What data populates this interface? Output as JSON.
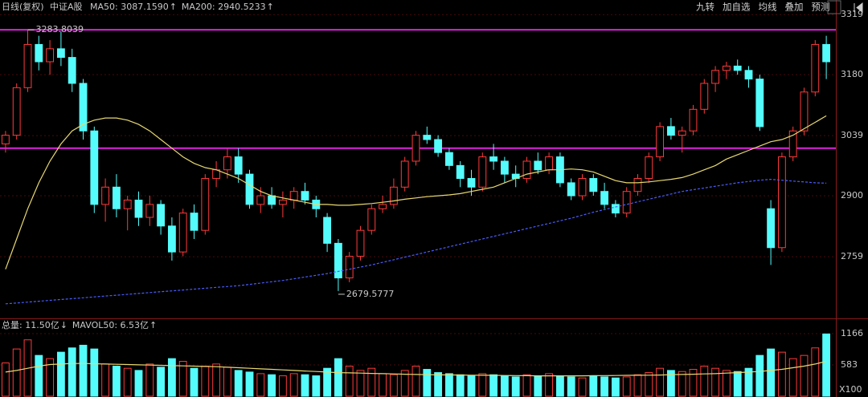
{
  "header": {
    "period": "日线(复权)",
    "name": "中证A股"
  },
  "toolbar": [
    "九转",
    "加自选",
    "均线",
    "叠加",
    "预测"
  ],
  "chart_data": {
    "type": "candlestick",
    "ylim": [
      2620,
      3338
    ],
    "yticks": [
      2759,
      2900,
      3039,
      3180,
      3319
    ],
    "up_color": "#ff3a3a",
    "down_color": "#54fcfc",
    "hlines": [
      3284,
      3010
    ],
    "hline_color": "#e020e0",
    "annotations": [
      {
        "value": 3283.8039,
        "label": "3283.8039"
      },
      {
        "value": 2679.5777,
        "label": "2679.5777"
      }
    ],
    "ohlc": [
      [
        3020,
        3050,
        3000,
        3040
      ],
      [
        3040,
        3160,
        3030,
        3150
      ],
      [
        3150,
        3283.8039,
        3140,
        3250
      ],
      [
        3250,
        3270,
        3190,
        3210
      ],
      [
        3210,
        3260,
        3180,
        3240
      ],
      [
        3240,
        3280,
        3200,
        3220
      ],
      [
        3220,
        3240,
        3140,
        3160
      ],
      [
        3160,
        3170,
        3030,
        3050
      ],
      [
        3050,
        3060,
        2860,
        2880
      ],
      [
        2880,
        2940,
        2840,
        2920
      ],
      [
        2920,
        2950,
        2850,
        2870
      ],
      [
        2870,
        2900,
        2820,
        2890
      ],
      [
        2890,
        2910,
        2830,
        2850
      ],
      [
        2850,
        2900,
        2830,
        2880
      ],
      [
        2880,
        2890,
        2810,
        2830
      ],
      [
        2830,
        2850,
        2750,
        2770
      ],
      [
        2770,
        2870,
        2760,
        2860
      ],
      [
        2860,
        2880,
        2800,
        2820
      ],
      [
        2820,
        2950,
        2810,
        2940
      ],
      [
        2940,
        2980,
        2920,
        2960
      ],
      [
        2960,
        3010,
        2940,
        2990
      ],
      [
        2990,
        3010,
        2930,
        2950
      ],
      [
        2950,
        2960,
        2870,
        2880
      ],
      [
        2880,
        2920,
        2860,
        2900
      ],
      [
        2900,
        2920,
        2870,
        2880
      ],
      [
        2880,
        2910,
        2850,
        2890
      ],
      [
        2890,
        2920,
        2870,
        2910
      ],
      [
        2910,
        2930,
        2880,
        2890
      ],
      [
        2890,
        2900,
        2850,
        2870
      ],
      [
        2850,
        2860,
        2770,
        2790
      ],
      [
        2790,
        2800,
        2679.5777,
        2710
      ],
      [
        2710,
        2770,
        2700,
        2760
      ],
      [
        2760,
        2830,
        2750,
        2820
      ],
      [
        2820,
        2880,
        2810,
        2870
      ],
      [
        2870,
        2900,
        2860,
        2880
      ],
      [
        2880,
        2940,
        2870,
        2920
      ],
      [
        2920,
        2990,
        2910,
        2980
      ],
      [
        2980,
        3050,
        2970,
        3040
      ],
      [
        3040,
        3060,
        3020,
        3030
      ],
      [
        3030,
        3040,
        2990,
        3000
      ],
      [
        3000,
        3010,
        2960,
        2970
      ],
      [
        2970,
        2980,
        2920,
        2940
      ],
      [
        2940,
        2960,
        2900,
        2920
      ],
      [
        2920,
        3000,
        2910,
        2990
      ],
      [
        2990,
        3020,
        2960,
        2980
      ],
      [
        2980,
        2990,
        2930,
        2950
      ],
      [
        2950,
        2970,
        2920,
        2940
      ],
      [
        2940,
        2990,
        2930,
        2980
      ],
      [
        2980,
        3000,
        2950,
        2960
      ],
      [
        2960,
        3000,
        2950,
        2990
      ],
      [
        2990,
        3000,
        2920,
        2930
      ],
      [
        2930,
        2940,
        2890,
        2900
      ],
      [
        2900,
        2950,
        2890,
        2940
      ],
      [
        2940,
        2950,
        2900,
        2910
      ],
      [
        2910,
        2930,
        2870,
        2880
      ],
      [
        2880,
        2890,
        2850,
        2860
      ],
      [
        2860,
        2920,
        2850,
        2910
      ],
      [
        2910,
        2950,
        2900,
        2940
      ],
      [
        2940,
        3000,
        2930,
        2990
      ],
      [
        2990,
        3070,
        2980,
        3060
      ],
      [
        3060,
        3080,
        3030,
        3040
      ],
      [
        3040,
        3060,
        3000,
        3050
      ],
      [
        3050,
        3110,
        3040,
        3100
      ],
      [
        3100,
        3170,
        3090,
        3160
      ],
      [
        3160,
        3200,
        3140,
        3190
      ],
      [
        3190,
        3210,
        3170,
        3200
      ],
      [
        3200,
        3215,
        3180,
        3190
      ],
      [
        3190,
        3200,
        3150,
        3170
      ],
      [
        3170,
        3180,
        3050,
        3060
      ],
      [
        2870,
        2890,
        2740,
        2780
      ],
      [
        2780,
        3000,
        2770,
        2990
      ],
      [
        2990,
        3060,
        2980,
        3050
      ],
      [
        3050,
        3150,
        3040,
        3140
      ],
      [
        3140,
        3260,
        3130,
        3250
      ],
      [
        3250,
        3270,
        3170,
        3210
      ]
    ],
    "series": [
      {
        "name": "MA50: 3087.1590",
        "trend": "↑",
        "color": "#e8d870",
        "values": [
          2730,
          2800,
          2870,
          2930,
          2980,
          3020,
          3050,
          3065,
          3075,
          3080,
          3080,
          3075,
          3065,
          3050,
          3030,
          3010,
          2990,
          2975,
          2965,
          2960,
          2950,
          2940,
          2925,
          2910,
          2900,
          2895,
          2890,
          2885,
          2880,
          2880,
          2878,
          2878,
          2880,
          2882,
          2885,
          2888,
          2892,
          2895,
          2898,
          2900,
          2902,
          2905,
          2910,
          2915,
          2920,
          2930,
          2940,
          2950,
          2955,
          2960,
          2960,
          2962,
          2960,
          2955,
          2945,
          2935,
          2930,
          2930,
          2932,
          2935,
          2938,
          2942,
          2950,
          2960,
          2970,
          2985,
          2995,
          3005,
          3015,
          3025,
          3030,
          3040,
          3055,
          3070,
          3085
        ]
      },
      {
        "name": "MA200: 2940.5233",
        "trend": "↑",
        "color": "#4a5cff",
        "dashed": true,
        "values": [
          2650,
          2652,
          2654,
          2656,
          2658,
          2660,
          2662,
          2664,
          2666,
          2668,
          2670,
          2672,
          2674,
          2676,
          2678,
          2680,
          2682,
          2684,
          2686,
          2688,
          2690,
          2692,
          2695,
          2698,
          2701,
          2704,
          2708,
          2712,
          2716,
          2720,
          2725,
          2730,
          2735,
          2740,
          2746,
          2752,
          2758,
          2764,
          2770,
          2776,
          2782,
          2788,
          2794,
          2800,
          2806,
          2812,
          2818,
          2824,
          2830,
          2836,
          2842,
          2848,
          2855,
          2862,
          2868,
          2874,
          2880,
          2886,
          2892,
          2898,
          2904,
          2910,
          2914,
          2918,
          2922,
          2926,
          2930,
          2933,
          2936,
          2938,
          2936,
          2934,
          2932,
          2930,
          2929
        ]
      }
    ],
    "volume": {
      "total_label": "总量: 11.50亿",
      "total_trend": "↓",
      "ylim": [
        0,
        1405
      ],
      "yticks": [
        583,
        1166
      ],
      "unit": "X100",
      "values": [
        620,
        880,
        1050,
        760,
        700,
        820,
        900,
        950,
        880,
        600,
        560,
        520,
        480,
        600,
        540,
        700,
        650,
        520,
        560,
        600,
        540,
        480,
        450,
        420,
        400,
        380,
        420,
        400,
        380,
        520,
        700,
        560,
        480,
        520,
        420,
        400,
        480,
        560,
        500,
        440,
        420,
        400,
        380,
        420,
        400,
        380,
        360,
        400,
        380,
        420,
        380,
        360,
        340,
        380,
        360,
        340,
        360,
        400,
        440,
        520,
        480,
        460,
        500,
        560,
        520,
        480,
        460,
        520,
        760,
        880,
        820,
        700,
        760,
        900,
        1160
      ],
      "ma": {
        "name": "MAVOL50: 6.53亿",
        "trend": "↑",
        "color": "#e8d870",
        "values": [
          450,
          480,
          520,
          560,
          590,
          600,
          610,
          610,
          605,
          600,
          595,
          590,
          585,
          580,
          575,
          570,
          565,
          560,
          555,
          550,
          540,
          530,
          520,
          510,
          500,
          490,
          480,
          470,
          460,
          450,
          440,
          435,
          430,
          425,
          420,
          415,
          410,
          405,
          400,
          398,
          396,
          394,
          392,
          390,
          388,
          386,
          384,
          382,
          380,
          380,
          380,
          380,
          380,
          382,
          384,
          386,
          388,
          390,
          392,
          395,
          400,
          405,
          410,
          415,
          420,
          430,
          440,
          450,
          460,
          480,
          500,
          530,
          560,
          600,
          650
        ]
      }
    }
  }
}
